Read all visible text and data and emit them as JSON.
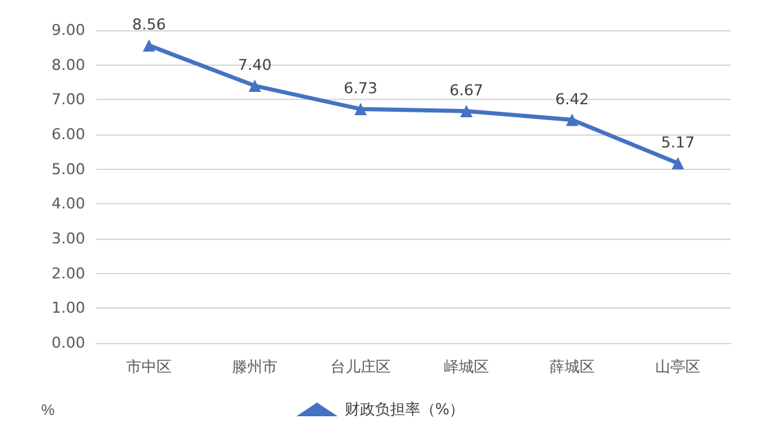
{
  "chart_data": {
    "type": "line",
    "ylabel": "%",
    "categories": [
      "市中区",
      "滕州市",
      "台儿庄区",
      "峄城区",
      "薛城区",
      "山亭区"
    ],
    "series": [
      {
        "name": "财政负担率（%）",
        "color": "#4472c4",
        "values": [
          8.56,
          7.4,
          6.73,
          6.67,
          6.42,
          5.17
        ],
        "value_labels": [
          "8.56",
          "7.40",
          "6.73",
          "6.67",
          "6.42",
          "5.17"
        ]
      }
    ],
    "ylim": [
      0,
      9
    ],
    "yticks": [
      {
        "value": 0,
        "label": "0.00"
      },
      {
        "value": 1,
        "label": "1.00"
      },
      {
        "value": 2,
        "label": "2.00"
      },
      {
        "value": 3,
        "label": "3.00"
      },
      {
        "value": 4,
        "label": "4.00"
      },
      {
        "value": 5,
        "label": "5.00"
      },
      {
        "value": 6,
        "label": "6.00"
      },
      {
        "value": 7,
        "label": "7.00"
      },
      {
        "value": 8,
        "label": "8.00"
      },
      {
        "value": 9,
        "label": "9.00"
      }
    ],
    "grid": "y",
    "legend": "bottom",
    "marker": "triangle",
    "line_style": "solid"
  }
}
